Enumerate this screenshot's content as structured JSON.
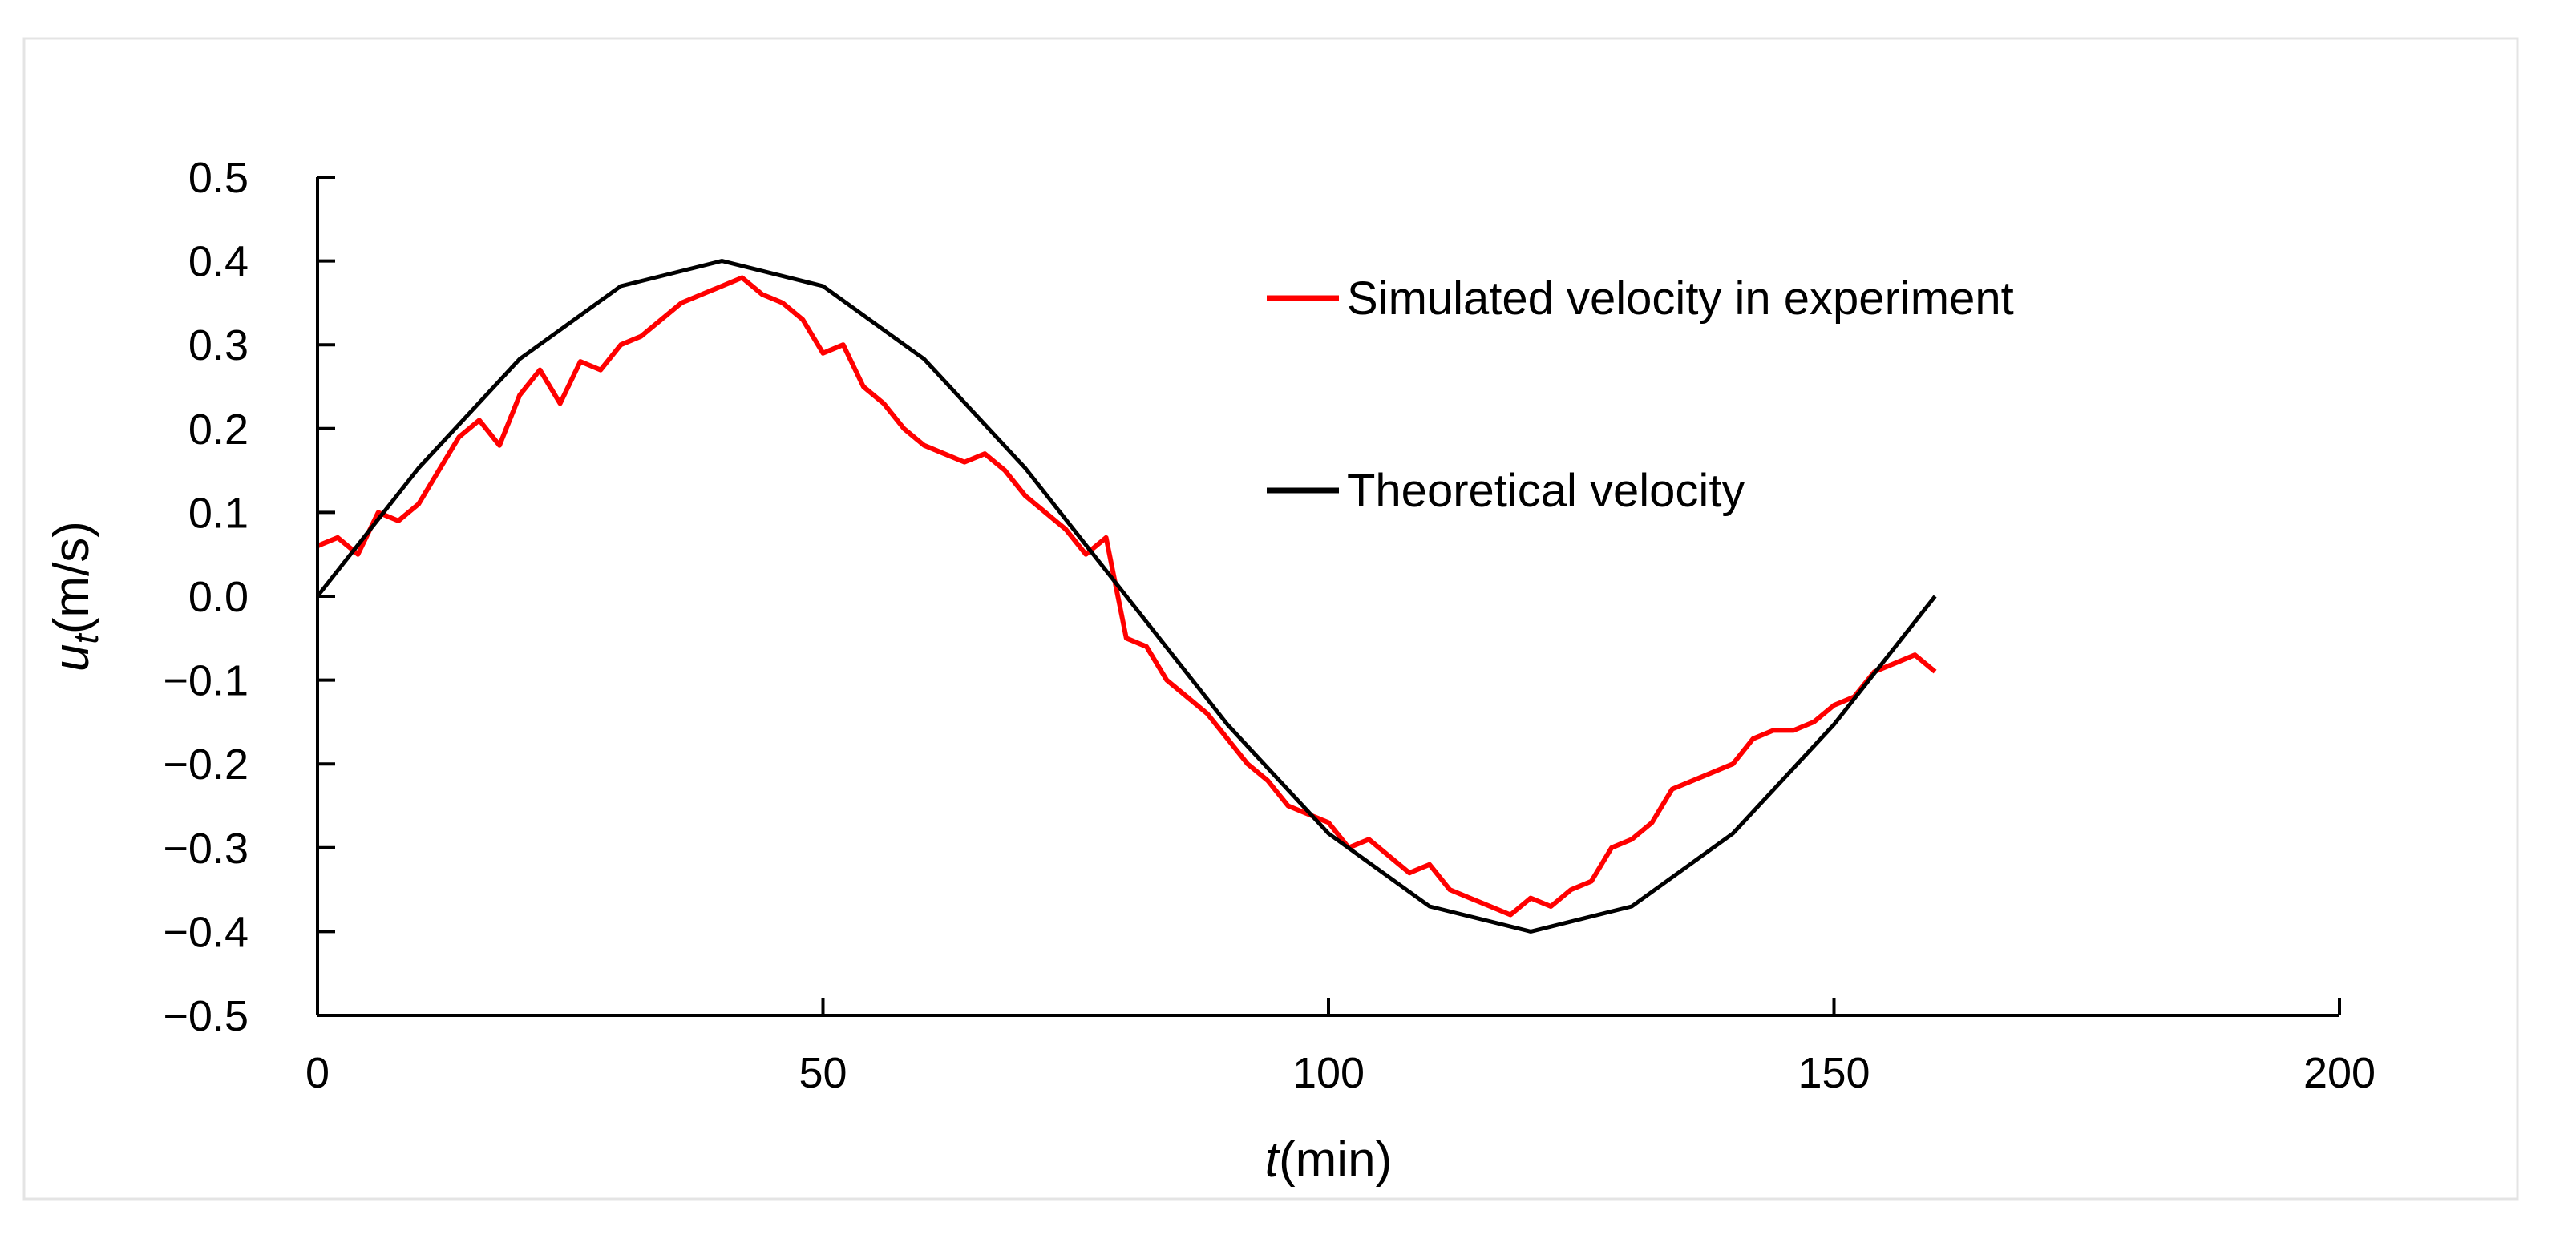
{
  "chart_data": {
    "type": "line",
    "title": "",
    "xlabel": {
      "italic": "t",
      "rest": "(min)"
    },
    "ylabel": {
      "italic": "u",
      "sub": "t",
      "rest": "(m/s)"
    },
    "xlim": [
      0,
      200
    ],
    "ylim": [
      -0.5,
      0.5
    ],
    "xticks": [
      "0",
      "50",
      "100",
      "150",
      "200"
    ],
    "xtick_values": [
      0,
      50,
      100,
      150,
      200
    ],
    "yticks": [
      "0.5",
      "0.4",
      "0.3",
      "0.2",
      "0.1",
      "0.0",
      "−0.1",
      "−0.2",
      "−0.3",
      "−0.4",
      "−0.5"
    ],
    "ytick_values": [
      0.5,
      0.4,
      0.3,
      0.2,
      0.1,
      0.0,
      -0.1,
      -0.2,
      -0.3,
      -0.4,
      -0.5
    ],
    "grid": false,
    "legend_position": "top-right",
    "series": [
      {
        "name": "Simulated velocity in experiment",
        "color": "#ff0000",
        "x": [
          0,
          2,
          4,
          6,
          8,
          10,
          12,
          14,
          16,
          18,
          20,
          22,
          24,
          26,
          28,
          30,
          32,
          34,
          36,
          38,
          40,
          42,
          44,
          46,
          48,
          50,
          52,
          54,
          56,
          58,
          60,
          62,
          64,
          66,
          68,
          70,
          72,
          74,
          76,
          78,
          80,
          82,
          84,
          86,
          88,
          90,
          92,
          94,
          96,
          98,
          100,
          102,
          104,
          106,
          108,
          110,
          112,
          114,
          116,
          118,
          120,
          122,
          124,
          126,
          128,
          130,
          132,
          134,
          136,
          138,
          140,
          142,
          144,
          146,
          148,
          150,
          152,
          154,
          156,
          158,
          160
        ],
        "y": [
          0.06,
          0.07,
          0.05,
          0.1,
          0.09,
          0.11,
          0.15,
          0.19,
          0.21,
          0.18,
          0.24,
          0.27,
          0.23,
          0.28,
          0.27,
          0.3,
          0.31,
          0.33,
          0.35,
          0.36,
          0.37,
          0.38,
          0.36,
          0.35,
          0.33,
          0.29,
          0.3,
          0.25,
          0.23,
          0.2,
          0.18,
          0.17,
          0.16,
          0.17,
          0.15,
          0.12,
          0.1,
          0.08,
          0.05,
          0.07,
          -0.05,
          -0.06,
          -0.1,
          -0.12,
          -0.14,
          -0.17,
          -0.2,
          -0.22,
          -0.25,
          -0.26,
          -0.27,
          -0.3,
          -0.29,
          -0.31,
          -0.33,
          -0.32,
          -0.35,
          -0.36,
          -0.37,
          -0.38,
          -0.36,
          -0.37,
          -0.35,
          -0.34,
          -0.3,
          -0.29,
          -0.27,
          -0.23,
          -0.22,
          -0.21,
          -0.2,
          -0.17,
          -0.16,
          -0.16,
          -0.15,
          -0.13,
          -0.12,
          -0.09,
          -0.08,
          -0.07,
          -0.09
        ]
      },
      {
        "name": "Theoretical velocity",
        "color": "#000000",
        "x": [
          0,
          10,
          20,
          30,
          40,
          50,
          60,
          70,
          80,
          90,
          100,
          110,
          120,
          130,
          140,
          150,
          160
        ],
        "y": [
          0,
          0.153,
          0.283,
          0.37,
          0.4,
          0.37,
          0.283,
          0.153,
          0,
          -0.153,
          -0.283,
          -0.37,
          -0.4,
          -0.37,
          -0.283,
          -0.153,
          0
        ]
      }
    ]
  }
}
